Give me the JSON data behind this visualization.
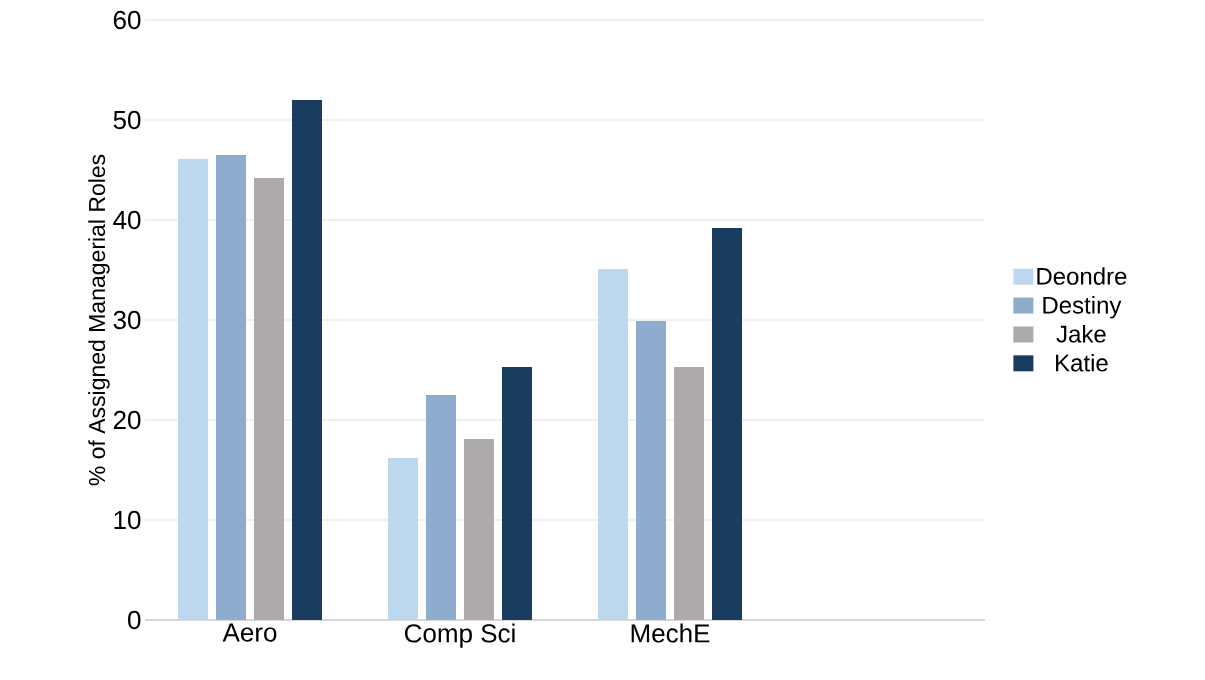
{
  "chart_data": {
    "type": "bar",
    "ylabel": "% of Assigned Managerial Roles",
    "categories": [
      "Aero",
      "Comp Sci",
      "MechE"
    ],
    "series": [
      {
        "name": "Deondre",
        "color": "#bdd7ee",
        "values": [
          46.1,
          16.2,
          35.1
        ]
      },
      {
        "name": "Destiny",
        "color": "#8eaccd",
        "values": [
          46.5,
          22.5,
          29.9
        ]
      },
      {
        "name": "Jake",
        "color": "#aeaaaa",
        "values": [
          44.2,
          18.1,
          25.3
        ]
      },
      {
        "name": "Katie",
        "color": "#1a3c5e",
        "values": [
          52.0,
          25.3,
          39.2
        ]
      }
    ],
    "ylim": [
      0,
      60
    ],
    "yticks": [
      0,
      10,
      20,
      30,
      40,
      50,
      60
    ],
    "grid": "y",
    "legend": "right"
  }
}
